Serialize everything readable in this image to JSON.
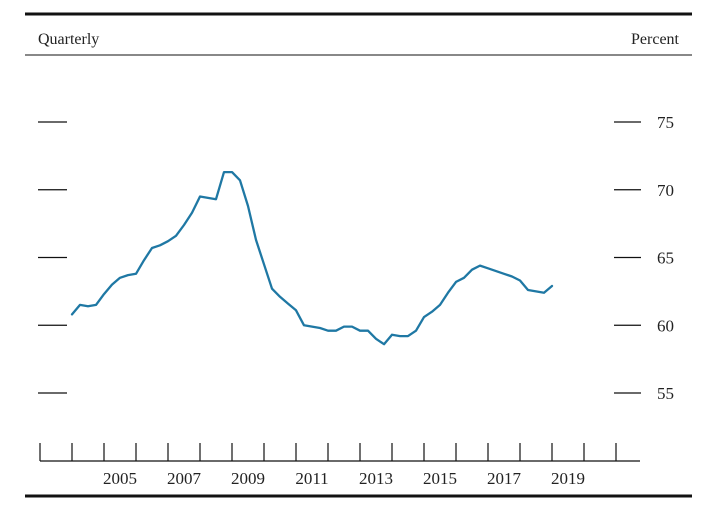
{
  "header": {
    "left_label": "Quarterly",
    "right_label": "Percent"
  },
  "chart_data": {
    "type": "line",
    "title": "",
    "xlabel": "",
    "ylabel": "Percent",
    "frequency_label": "Quarterly",
    "xlim": [
      2003.0,
      2021.75
    ],
    "ylim": [
      52,
      78
    ],
    "y_ticks": [
      55,
      60,
      65,
      70,
      75
    ],
    "y_tick_labels": [
      "55",
      "60",
      "65",
      "70",
      "75"
    ],
    "x_tick_positions": [
      2003,
      2004,
      2005,
      2006,
      2007,
      2008,
      2009,
      2010,
      2011,
      2012,
      2013,
      2014,
      2015,
      2016,
      2017,
      2018,
      2019,
      2020,
      2021
    ],
    "x_labels": [
      {
        "x": 2005,
        "text": "2005"
      },
      {
        "x": 2007,
        "text": "2007"
      },
      {
        "x": 2009,
        "text": "2009"
      },
      {
        "x": 2011,
        "text": "2011"
      },
      {
        "x": 2013,
        "text": "2013"
      },
      {
        "x": 2015,
        "text": "2015"
      },
      {
        "x": 2017,
        "text": "2017"
      },
      {
        "x": 2019,
        "text": "2019"
      }
    ],
    "grid": false,
    "legend": "none",
    "series": [
      {
        "color": "#1f78a4",
        "x": [
          2004.0,
          2004.25,
          2004.5,
          2004.75,
          2005.0,
          2005.25,
          2005.5,
          2005.75,
          2006.0,
          2006.25,
          2006.5,
          2006.75,
          2007.0,
          2007.25,
          2007.5,
          2007.75,
          2008.0,
          2008.25,
          2008.5,
          2008.75,
          2009.0,
          2009.25,
          2009.5,
          2009.75,
          2010.0,
          2010.25,
          2010.5,
          2010.75,
          2011.0,
          2011.25,
          2011.5,
          2011.75,
          2012.0,
          2012.25,
          2012.5,
          2012.75,
          2013.0,
          2013.25,
          2013.5,
          2013.75,
          2014.0,
          2014.25,
          2014.5,
          2014.75,
          2015.0,
          2015.25,
          2015.5,
          2015.75,
          2016.0,
          2016.25,
          2016.5,
          2016.75,
          2017.0,
          2017.25,
          2017.5,
          2017.75,
          2018.0,
          2018.25,
          2018.5,
          2018.75,
          2019.0
        ],
        "y": [
          60.8,
          61.5,
          61.4,
          61.5,
          62.3,
          63.0,
          63.5,
          63.7,
          63.8,
          64.8,
          65.7,
          65.9,
          66.2,
          66.6,
          67.4,
          68.3,
          69.5,
          69.4,
          69.3,
          71.3,
          71.3,
          70.7,
          68.8,
          66.3,
          64.5,
          62.7,
          62.1,
          61.6,
          61.1,
          60.0,
          59.9,
          59.8,
          59.6,
          59.6,
          59.9,
          59.9,
          59.6,
          59.6,
          59.0,
          58.6,
          59.3,
          59.2,
          59.2,
          59.6,
          60.6,
          61.0,
          61.5,
          62.4,
          63.2,
          63.5,
          64.1,
          64.4,
          64.2,
          64.0,
          63.8,
          63.6,
          63.3,
          62.6,
          62.5,
          62.4,
          62.9
        ]
      }
    ]
  }
}
